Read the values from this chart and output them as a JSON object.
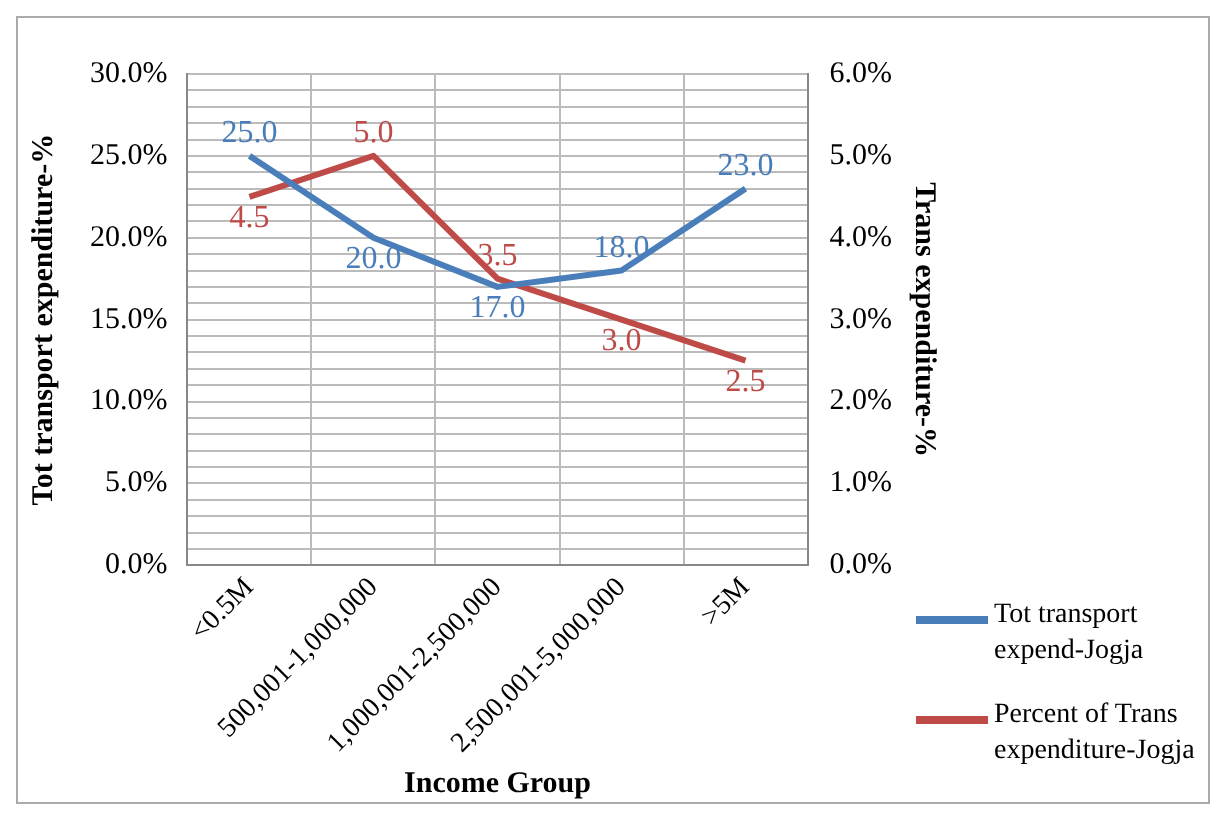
{
  "chart_data": {
    "type": "line",
    "xlabel": "Income Group",
    "ylabel": "Tot transport expenditure-%",
    "y2label": "Trans expenditure-%",
    "categories": [
      "<0.5M",
      "500,001-1,000,000",
      "1,000,001-2,500,000",
      "2,500,001-5,000,000",
      ">5M"
    ],
    "series": [
      {
        "name": "Tot transport expend-Jogja",
        "color": "#4a7ebb",
        "values": [
          25,
          20,
          17,
          18,
          23
        ],
        "value_labels": [
          "25.0",
          "20.0",
          "17.0",
          "18.0",
          "23.0"
        ]
      },
      {
        "name": "Percent of Trans expenditure-Jogja",
        "color": "#be4b48",
        "axis": "y2",
        "values": [
          4.5,
          5,
          3.5,
          3,
          2.5
        ],
        "value_labels": [
          "4.5",
          "5.0",
          "3.5",
          "3.0",
          "2.5"
        ]
      }
    ],
    "ylim": [
      0,
      30
    ],
    "yticks": [
      {
        "value": 0,
        "label": "0.0%"
      },
      {
        "value": 1,
        "label": null
      },
      {
        "value": 2,
        "label": null
      },
      {
        "value": 3,
        "label": null
      },
      {
        "value": 4,
        "label": null
      },
      {
        "value": 5,
        "label": "5.0%"
      },
      {
        "value": 6,
        "label": null
      },
      {
        "value": 7,
        "label": null
      },
      {
        "value": 8,
        "label": null
      },
      {
        "value": 9,
        "label": null
      },
      {
        "value": 10,
        "label": "10.0%"
      },
      {
        "value": 11,
        "label": null
      },
      {
        "value": 12,
        "label": null
      },
      {
        "value": 13,
        "label": null
      },
      {
        "value": 14,
        "label": null
      },
      {
        "value": 15,
        "label": "15.0%"
      },
      {
        "value": 16,
        "label": null
      },
      {
        "value": 17,
        "label": null
      },
      {
        "value": 18,
        "label": null
      },
      {
        "value": 19,
        "label": null
      },
      {
        "value": 20,
        "label": "20.0%"
      },
      {
        "value": 21,
        "label": null
      },
      {
        "value": 22,
        "label": null
      },
      {
        "value": 23,
        "label": null
      },
      {
        "value": 24,
        "label": null
      },
      {
        "value": 25,
        "label": "25.0%"
      },
      {
        "value": 26,
        "label": null
      },
      {
        "value": 27,
        "label": null
      },
      {
        "value": 28,
        "label": null
      },
      {
        "value": 29,
        "label": null
      },
      {
        "value": 30,
        "label": "30.0%"
      }
    ],
    "y2lim": [
      0,
      6
    ],
    "y2ticks": [
      {
        "value": 0,
        "label": "0.0%"
      },
      {
        "value": 1,
        "label": "1.0%"
      },
      {
        "value": 2,
        "label": "2.0%"
      },
      {
        "value": 3,
        "label": "3.0%"
      },
      {
        "value": 4,
        "label": "4.0%"
      },
      {
        "value": 5,
        "label": "5.0%"
      },
      {
        "value": 6,
        "label": "6.0%"
      }
    ],
    "grid": true,
    "legend": "bottom right",
    "marker": "none",
    "line_style": "solid"
  }
}
